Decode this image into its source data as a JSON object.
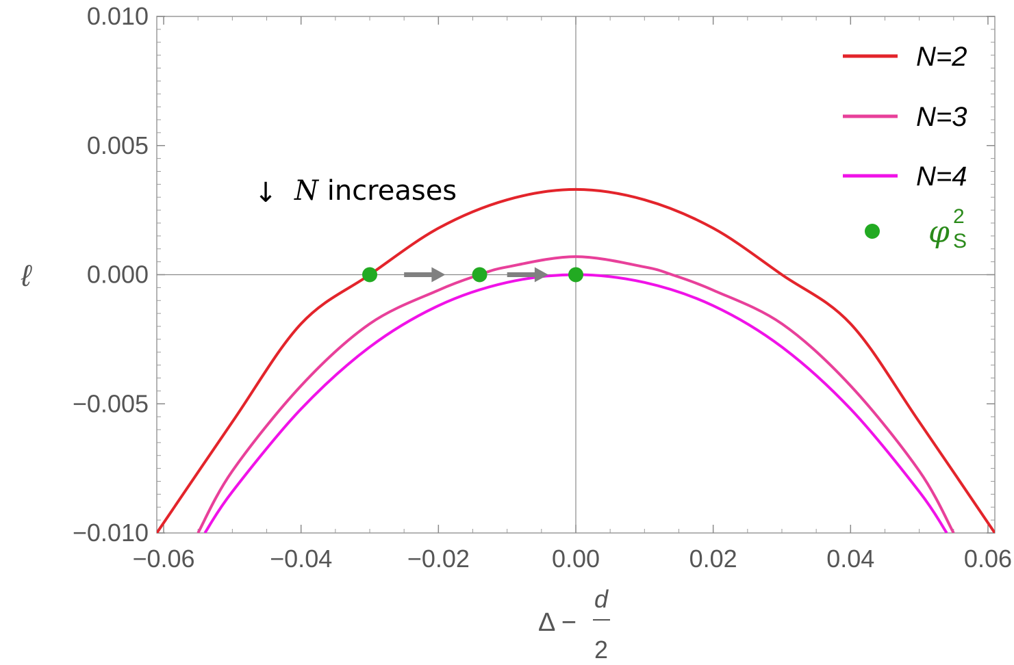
{
  "chart_data": {
    "type": "line",
    "title": "",
    "xlabel": {
      "main": "Δ −",
      "frac_num": "d",
      "frac_den": "2"
    },
    "ylabel": "ℓ",
    "xlim": [
      -0.061,
      0.061
    ],
    "ylim": [
      -0.01,
      0.01
    ],
    "xticks": [
      -0.06,
      -0.04,
      -0.02,
      0.0,
      0.02,
      0.04,
      0.06
    ],
    "xtick_labels": [
      "−0.06",
      "−0.04",
      "−0.02",
      "0.00",
      "0.02",
      "0.04",
      "0.06"
    ],
    "yticks": [
      -0.01,
      -0.005,
      0.0,
      0.005,
      0.01
    ],
    "ytick_labels": [
      "−0.010",
      "−0.005",
      "0.000",
      "0.005",
      "0.010"
    ],
    "grid": false,
    "legend_position": "top-right",
    "series": [
      {
        "name": "N=2",
        "color": "#e3242b",
        "x": [
          -0.061,
          -0.05,
          -0.04,
          -0.03,
          -0.02,
          -0.01,
          0.0,
          0.01,
          0.02,
          0.03,
          0.04,
          0.05,
          0.061
        ],
        "y": [
          -0.01,
          -0.0057,
          -0.0019,
          0.0,
          0.0018,
          0.0029,
          0.0033,
          0.0029,
          0.0018,
          0.0,
          -0.0019,
          -0.0057,
          -0.01
        ]
      },
      {
        "name": "N=3",
        "color": "#e8409a",
        "x": [
          -0.055,
          -0.05,
          -0.04,
          -0.03,
          -0.02,
          -0.014,
          -0.01,
          0.0,
          0.01,
          0.014,
          0.02,
          0.03,
          0.04,
          0.05,
          0.055
        ],
        "y": [
          -0.01,
          -0.0076,
          -0.0043,
          -0.0019,
          -0.0006,
          0.0,
          0.0003,
          0.0007,
          0.0003,
          0.0,
          -0.0006,
          -0.0019,
          -0.0043,
          -0.0076,
          -0.01
        ]
      },
      {
        "name": "N=4",
        "color": "#f012e8",
        "x": [
          -0.054,
          -0.05,
          -0.04,
          -0.03,
          -0.02,
          -0.01,
          0.0,
          0.01,
          0.02,
          0.03,
          0.04,
          0.05,
          0.054
        ],
        "y": [
          -0.01,
          -0.0084,
          -0.0052,
          -0.0028,
          -0.0012,
          -0.0003,
          0.0,
          -0.0003,
          -0.0012,
          -0.0028,
          -0.0052,
          -0.0084,
          -0.01
        ]
      }
    ],
    "points": {
      "name": "φ",
      "name_sup": "2",
      "name_sub": "S",
      "color": "#22aa22",
      "x": [
        -0.03,
        -0.014,
        0.0
      ],
      "y": [
        0.0,
        0.0,
        0.0
      ]
    },
    "arrows": [
      {
        "from": [
          -0.025,
          0.0
        ],
        "to": [
          -0.019,
          0.0
        ],
        "color": "#808080"
      },
      {
        "from": [
          -0.01,
          0.0
        ],
        "to": [
          -0.004,
          0.0
        ],
        "color": "#808080"
      }
    ],
    "annotation": {
      "glyph": "↓",
      "text_var": "N",
      "text": " increases",
      "x": -0.0455,
      "y": 0.0033
    }
  }
}
